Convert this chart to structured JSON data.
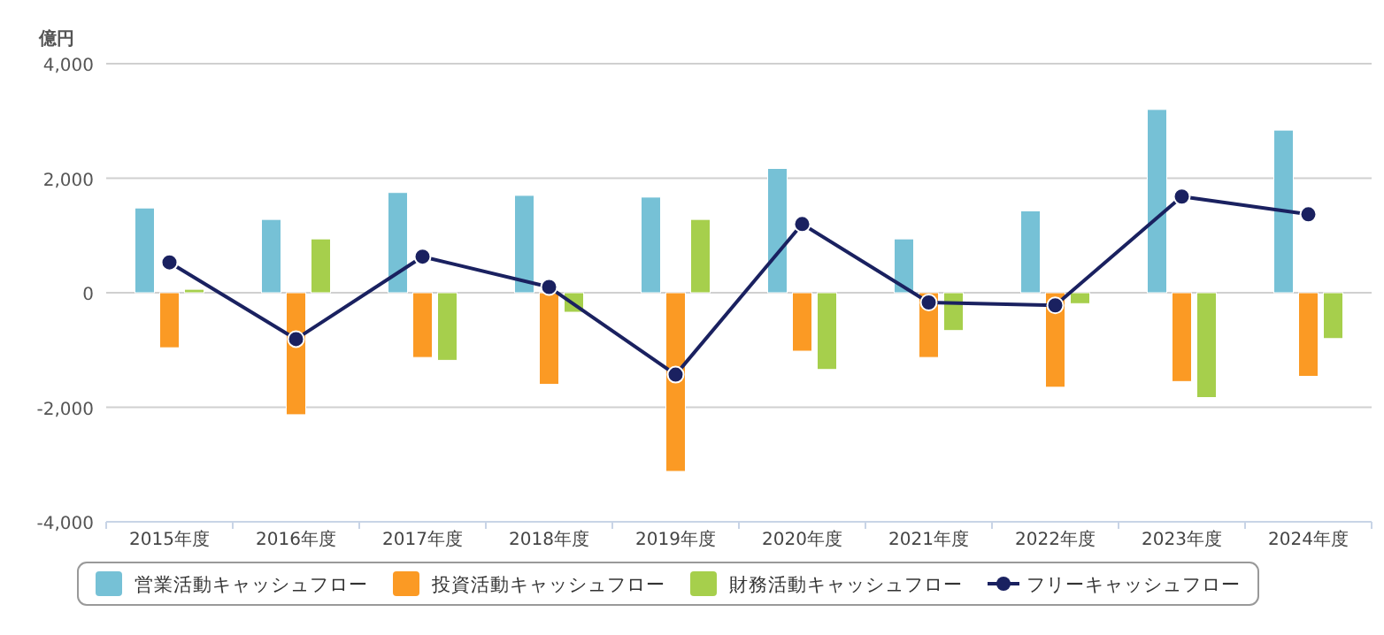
{
  "chart_data": {
    "type": "bar",
    "ylabel": "億円",
    "categories": [
      "2015年度",
      "2016年度",
      "2017年度",
      "2018年度",
      "2019年度",
      "2020年度",
      "2021年度",
      "2022年度",
      "2023年度",
      "2024年度"
    ],
    "series": [
      {
        "name": "営業活動キャッシュフロー",
        "color": "#76c1d6",
        "values": [
          1480,
          1280,
          1750,
          1700,
          1670,
          2170,
          940,
          1430,
          3200,
          2840
        ]
      },
      {
        "name": "投資活動キャッシュフロー",
        "color": "#fb9a24",
        "values": [
          -960,
          -2130,
          -1130,
          -1600,
          -3120,
          -1020,
          -1130,
          -1650,
          -1550,
          -1460
        ]
      },
      {
        "name": "財務活動キャッシュフロー",
        "color": "#a6cf4c",
        "values": [
          60,
          940,
          -1180,
          -340,
          1280,
          -1340,
          -660,
          -190,
          -1830,
          -800
        ]
      },
      {
        "name": "フリーキャッシュフロー",
        "color": "#1a2160",
        "type": "line",
        "values": [
          530,
          -810,
          630,
          100,
          -1430,
          1200,
          -170,
          -220,
          1680,
          1370
        ]
      }
    ],
    "ylim": [
      -4000,
      4000
    ],
    "yticks": [
      {
        "value": -4000,
        "label": "-4,000"
      },
      {
        "value": -2000,
        "label": "-2,000"
      },
      0,
      {
        "value": 2000,
        "label": "2,000"
      },
      {
        "value": 4000,
        "label": "4,000"
      }
    ],
    "grid": "y",
    "legend": "bottom",
    "marker": "circle"
  }
}
